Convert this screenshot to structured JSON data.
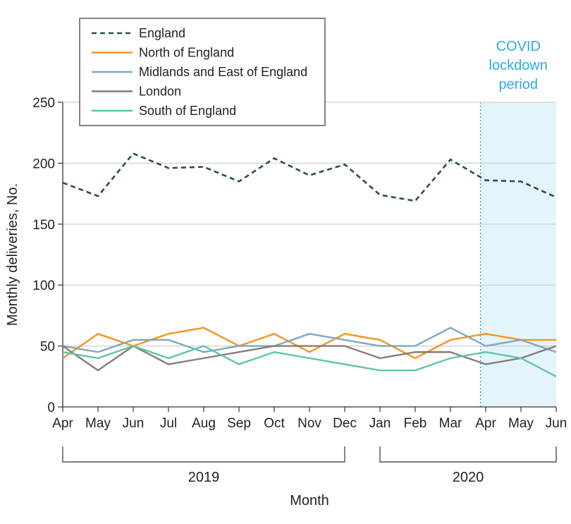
{
  "chart_data": {
    "type": "line",
    "ylabel": "Monthly deliveries, No.",
    "xlabel": "Month",
    "ylim": [
      0,
      250
    ],
    "yticks": [
      0,
      50,
      100,
      150,
      200,
      250
    ],
    "categories": [
      "Apr",
      "May",
      "Jun",
      "Jul",
      "Aug",
      "Sep",
      "Oct",
      "Nov",
      "Dec",
      "Jan",
      "Feb",
      "Mar",
      "Apr",
      "May",
      "Jun"
    ],
    "year_groups": [
      {
        "label": "2019",
        "from": 0,
        "to": 8
      },
      {
        "label": "2020",
        "from": 9,
        "to": 14
      }
    ],
    "shaded_region": {
      "label": "COVID lockdown period",
      "label_lines": [
        "COVID",
        "lockdown",
        "period"
      ],
      "start": 11.85,
      "end": 14,
      "color": "#e3f4fb",
      "border_color": "#29abe2"
    },
    "grid": "horizontal",
    "legend_position": "top-left",
    "series": [
      {
        "name": "England",
        "color": "#2b4a5a",
        "dash": true,
        "values": [
          184,
          173,
          208,
          196,
          197,
          185,
          204,
          190,
          199,
          174,
          169,
          203,
          186,
          185,
          172
        ]
      },
      {
        "name": "North of England",
        "color": "#f7941d",
        "dash": false,
        "values": [
          40,
          60,
          50,
          60,
          65,
          50,
          60,
          45,
          60,
          55,
          40,
          55,
          60,
          55,
          55
        ]
      },
      {
        "name": "Midlands and East of England",
        "color": "#7ea7c1",
        "dash": false,
        "values": [
          50,
          45,
          55,
          55,
          45,
          50,
          50,
          60,
          55,
          50,
          50,
          65,
          50,
          55,
          45
        ]
      },
      {
        "name": "London",
        "color": "#8b7b71",
        "dash": false,
        "values": [
          50,
          30,
          50,
          35,
          40,
          45,
          50,
          50,
          50,
          40,
          45,
          45,
          35,
          40,
          50
        ]
      },
      {
        "name": "South of England",
        "color": "#5cc6a5",
        "dash": false,
        "values": [
          45,
          40,
          50,
          40,
          50,
          35,
          45,
          40,
          35,
          30,
          30,
          40,
          45,
          40,
          25
        ]
      }
    ]
  }
}
